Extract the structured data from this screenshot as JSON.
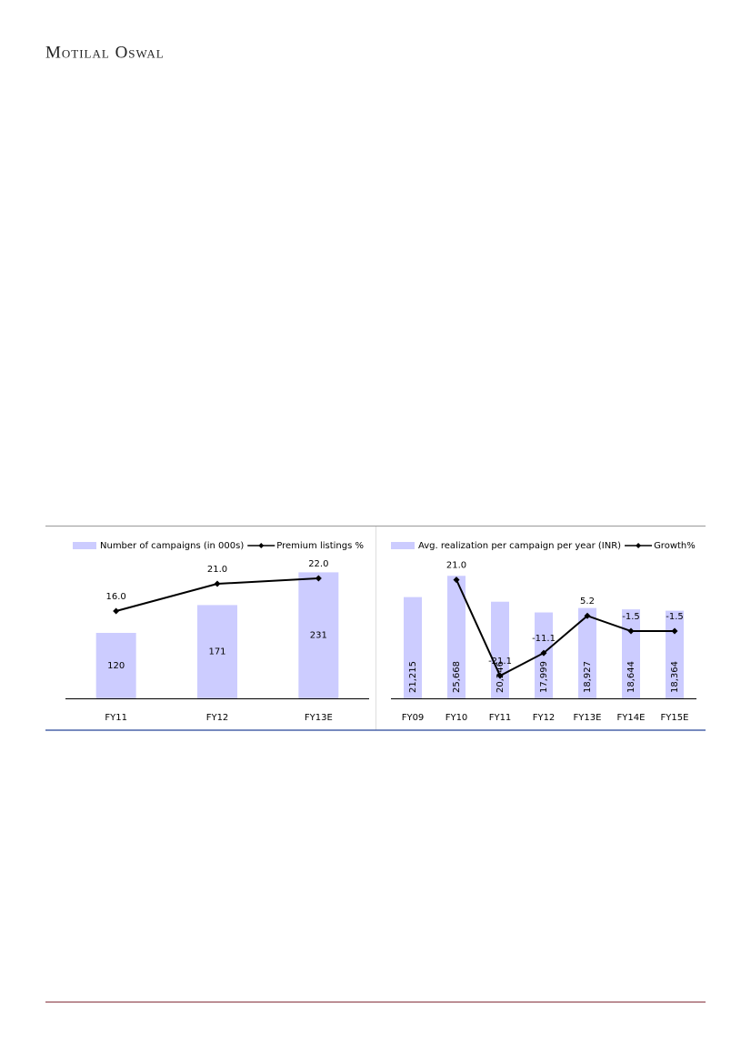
{
  "header": {
    "brand": "Motilal Oswal"
  },
  "chart_data": [
    {
      "type": "combo",
      "categories": [
        "FY11",
        "FY12",
        "FY13E"
      ],
      "ylim": [
        0,
        280
      ],
      "y2lim": [
        0,
        28
      ],
      "series": [
        {
          "name": "Number of campaigns (in 000s)",
          "type": "bar",
          "color": "#ccccff",
          "values": [
            120,
            171,
            231
          ]
        },
        {
          "name": "Premium listings %",
          "type": "line",
          "axis": "y2",
          "color": "#000000",
          "values": [
            16,
            21,
            22
          ],
          "value_labels": [
            "16.0",
            "21.0",
            "22.0"
          ]
        }
      ]
    },
    {
      "type": "combo",
      "categories": [
        "FY09",
        "FY10",
        "FY11",
        "FY12",
        "FY13E",
        "FY14E",
        "FY15E"
      ],
      "ylim": [
        0,
        32000
      ],
      "y2lim": [
        -31,
        36
      ],
      "series": [
        {
          "name": "Avg. realization per campaign per year (INR)",
          "type": "bar",
          "color": "#ccccff",
          "values": [
            21215,
            25668,
            20246,
            17999,
            18927,
            18644,
            18364
          ],
          "value_labels": [
            "21,215",
            "25,668",
            "20,246",
            "17,999",
            "18,927",
            "18,644",
            "18,364"
          ],
          "rotate_labels": true
        },
        {
          "name": "Growth%",
          "type": "line",
          "axis": "y2",
          "color": "#000000",
          "values": [
            null,
            21,
            -21.1,
            -11.1,
            5.2,
            -1.5,
            -1.5
          ],
          "value_labels": [
            null,
            "21.0",
            "-21.1",
            "-11.1",
            "5.2",
            "-1.5",
            "-1.5"
          ]
        }
      ]
    }
  ]
}
